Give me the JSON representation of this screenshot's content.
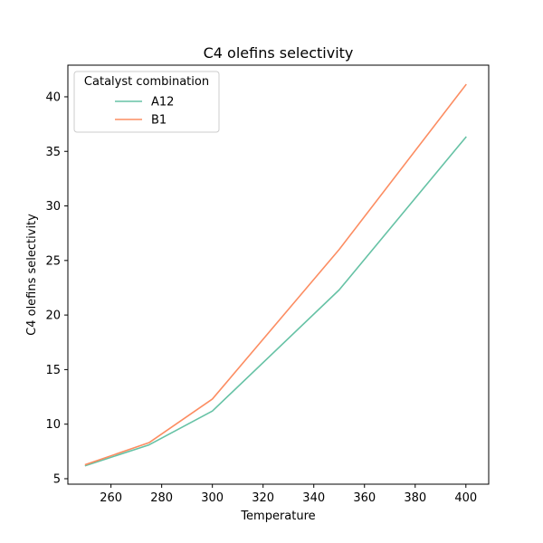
{
  "chart_data": {
    "type": "line",
    "title": "C4 olefins selectivity",
    "xlabel": "Temperature",
    "ylabel": "C4 olefins selectivity",
    "xlim": [
      243,
      409
    ],
    "ylim": [
      4.5,
      42.9
    ],
    "xticks": [
      260,
      280,
      300,
      320,
      340,
      360,
      380,
      400
    ],
    "yticks": [
      5,
      10,
      15,
      20,
      25,
      30,
      35,
      40
    ],
    "grid": false,
    "legend": {
      "title": "Catalyst combination",
      "placement": "top-left"
    },
    "x": [
      250,
      275,
      300,
      350,
      400
    ],
    "series": [
      {
        "name": "A12",
        "color": "#66c2a5",
        "values": [
          6.2,
          8.1,
          11.2,
          22.3,
          36.3
        ]
      },
      {
        "name": "B1",
        "color": "#fc8d62",
        "values": [
          6.3,
          8.3,
          12.3,
          26.0,
          41.1
        ]
      }
    ]
  }
}
